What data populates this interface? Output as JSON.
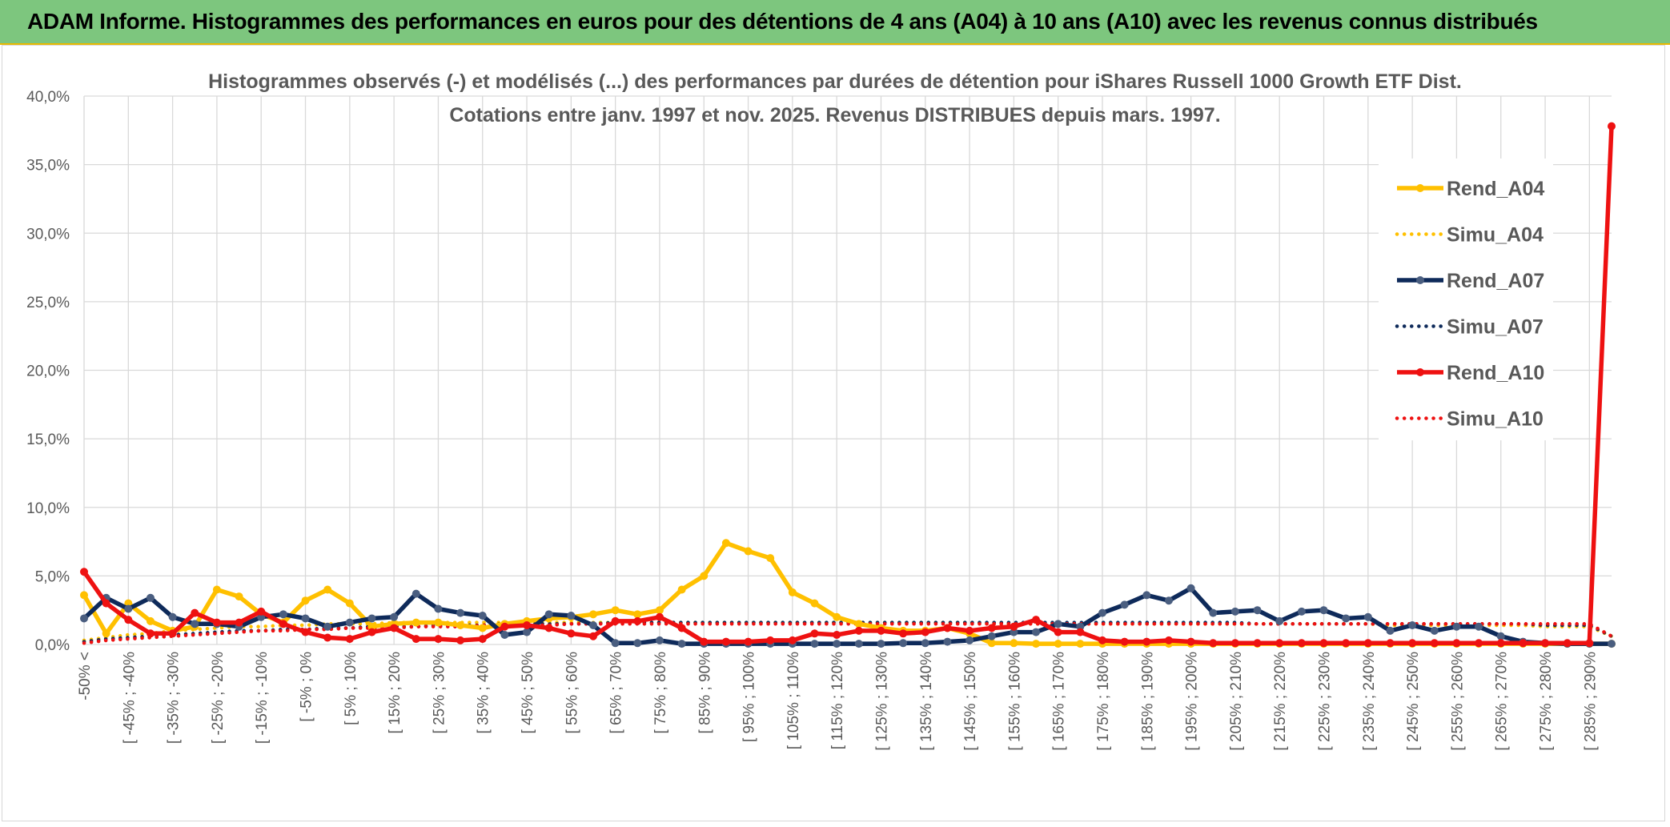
{
  "banner": {
    "title": "ADAM Informe. Histogrammes des performances en euros pour des détentions de 4 ans (A04) à 10 ans (A10) avec les revenus connus distribués"
  },
  "chart_data": {
    "type": "line",
    "title": "Histogrammes observés (-) et modélisés (...) des performances par durées de détention pour iShares Russell 1000 Growth ETF Dist.",
    "subtitle": "Cotations entre janv. 1997 et nov. 2025. Revenus DISTRIBUES depuis mars. 1997.",
    "xlabel": "",
    "ylabel": "",
    "ylim": [
      0,
      40
    ],
    "yticks": [
      "0,0%",
      "5,0%",
      "10,0%",
      "15,0%",
      "20,0%",
      "25,0%",
      "30,0%",
      "35,0%",
      "40,0%"
    ],
    "grid": true,
    "legend_position": "right",
    "tick_labels": [
      "-50% <",
      "[ -45% ; -40%",
      "[ -35% ; -30%",
      "[ -25% ; -20%",
      "[ -15% ; -10%",
      "[ -5% ; 0%",
      "[ 5% ; 10%",
      "[ 15% ; 20%",
      "[ 25% ; 30%",
      "[ 35% ; 40%",
      "[ 45% ; 50%",
      "[ 55% ; 60%",
      "[ 65% ; 70%",
      "[ 75% ; 80%",
      "[ 85% ; 90%",
      "[ 95% ; 100%",
      "[ 105% ; 110%",
      "[ 115% ; 120%",
      "[ 125% ; 130%",
      "[ 135% ; 140%",
      "[ 145% ; 150%",
      "[ 155% ; 160%",
      "[ 165% ; 170%",
      "[ 175% ; 180%",
      "[ 185% ; 190%",
      "[ 195% ; 200%",
      "[ 205% ; 210%",
      "[ 215% ; 220%",
      "[ 225% ; 230%",
      "[ 235% ; 240%",
      "[ 245% ; 250%",
      "[ 255% ; 260%",
      "[ 265% ; 270%",
      "[ 275% ; 280%",
      "[ 285% ; 290%"
    ],
    "num_categories": 70,
    "series": [
      {
        "name": "Rend_A04",
        "color": "#ffc000",
        "style": "solid",
        "values": [
          3.6,
          0.8,
          3.0,
          1.7,
          1.0,
          1.3,
          4.0,
          3.5,
          2.2,
          1.6,
          3.2,
          4.0,
          3.0,
          1.3,
          1.5,
          1.6,
          1.6,
          1.4,
          1.2,
          1.5,
          1.7,
          1.9,
          2.0,
          2.2,
          2.5,
          2.2,
          2.5,
          4.0,
          5.0,
          7.4,
          6.8,
          6.3,
          3.8,
          3.0,
          2.0,
          1.5,
          1.2,
          1.0,
          1.0,
          1.2,
          0.8,
          0.1,
          0.1,
          0.05,
          0.05,
          0.05,
          0.05,
          0.05,
          0.05,
          0.05,
          0.05,
          0.05,
          0.05,
          0.05,
          0.05,
          0.05,
          0.05,
          0.05,
          0.05,
          0.05,
          0.05,
          0.05,
          0.05,
          0.05,
          0.05,
          0.05,
          0.05,
          0.05,
          0.05,
          0.05
        ]
      },
      {
        "name": "Simu_A04",
        "color": "#ffc000",
        "style": "dotted",
        "values": [
          0.3,
          0.5,
          0.7,
          0.8,
          1.0,
          1.1,
          1.2,
          1.3,
          1.3,
          1.4,
          1.4,
          1.5,
          1.5,
          1.5,
          1.6,
          1.6,
          1.6,
          1.6,
          1.6,
          1.6,
          1.6,
          1.6,
          1.6,
          1.6,
          1.6,
          1.6,
          1.6,
          1.6,
          1.6,
          1.6,
          1.6,
          1.6,
          1.6,
          1.6,
          1.6,
          1.6,
          1.6,
          1.6,
          1.6,
          1.6,
          1.6,
          1.5,
          1.5,
          1.5,
          1.5,
          1.5,
          1.5,
          1.5,
          1.5,
          1.5,
          1.5,
          1.5,
          1.5,
          1.5,
          1.5,
          1.5,
          1.5,
          1.5,
          1.5,
          1.4,
          1.4,
          1.4,
          1.4,
          1.4,
          1.4,
          1.4,
          1.3,
          1.3,
          1.3,
          0.6
        ]
      },
      {
        "name": "Rend_A07",
        "color": "#0e2a5a",
        "style": "solid",
        "values": [
          1.9,
          3.4,
          2.6,
          3.4,
          2.0,
          1.5,
          1.5,
          1.3,
          2.0,
          2.2,
          1.9,
          1.3,
          1.6,
          1.9,
          2.0,
          3.7,
          2.6,
          2.3,
          2.1,
          0.7,
          0.9,
          2.2,
          2.1,
          1.4,
          0.1,
          0.1,
          0.3,
          0.05,
          0.05,
          0.05,
          0.05,
          0.05,
          0.05,
          0.05,
          0.05,
          0.05,
          0.05,
          0.1,
          0.1,
          0.2,
          0.3,
          0.6,
          0.9,
          0.9,
          1.5,
          1.3,
          2.3,
          2.9,
          3.6,
          3.2,
          4.1,
          2.3,
          2.4,
          2.5,
          1.7,
          2.4,
          2.5,
          1.9,
          2.0,
          1.0,
          1.4,
          1.0,
          1.3,
          1.3,
          0.6,
          0.2,
          0.1,
          0.05,
          0.05,
          0.05
        ]
      },
      {
        "name": "Simu_A07",
        "color": "#0e2a5a",
        "style": "dotted",
        "values": [
          0.2,
          0.4,
          0.5,
          0.6,
          0.7,
          0.8,
          0.9,
          1.0,
          1.0,
          1.1,
          1.1,
          1.2,
          1.2,
          1.3,
          1.3,
          1.3,
          1.4,
          1.4,
          1.4,
          1.5,
          1.5,
          1.5,
          1.5,
          1.5,
          1.6,
          1.6,
          1.6,
          1.6,
          1.6,
          1.6,
          1.6,
          1.6,
          1.6,
          1.6,
          1.6,
          1.6,
          1.6,
          1.6,
          1.6,
          1.6,
          1.6,
          1.6,
          1.6,
          1.6,
          1.6,
          1.6,
          1.6,
          1.6,
          1.6,
          1.6,
          1.6,
          1.6,
          1.6,
          1.5,
          1.5,
          1.5,
          1.5,
          1.5,
          1.5,
          1.5,
          1.5,
          1.5,
          1.5,
          1.5,
          1.5,
          1.5,
          1.4,
          1.4,
          1.4,
          0.6
        ]
      },
      {
        "name": "Rend_A10",
        "color": "#ee1111",
        "style": "solid",
        "values": [
          5.3,
          3.0,
          1.8,
          0.8,
          0.8,
          2.3,
          1.6,
          1.6,
          2.4,
          1.5,
          0.9,
          0.5,
          0.4,
          0.9,
          1.2,
          0.4,
          0.4,
          0.3,
          0.4,
          1.3,
          1.4,
          1.2,
          0.8,
          0.6,
          1.7,
          1.7,
          2.0,
          1.2,
          0.2,
          0.2,
          0.2,
          0.3,
          0.3,
          0.8,
          0.7,
          1.0,
          1.0,
          0.8,
          0.9,
          1.2,
          1.0,
          1.2,
          1.3,
          1.8,
          0.9,
          0.9,
          0.3,
          0.2,
          0.2,
          0.3,
          0.2,
          0.1,
          0.1,
          0.1,
          0.1,
          0.1,
          0.1,
          0.1,
          0.1,
          0.1,
          0.1,
          0.1,
          0.1,
          0.1,
          0.1,
          0.1,
          0.1,
          0.1,
          0.1,
          37.8
        ]
      },
      {
        "name": "Simu_A10",
        "color": "#ee1111",
        "style": "dotted",
        "values": [
          0.1,
          0.3,
          0.4,
          0.5,
          0.6,
          0.7,
          0.8,
          0.9,
          1.0,
          1.0,
          1.1,
          1.1,
          1.2,
          1.2,
          1.2,
          1.3,
          1.3,
          1.3,
          1.4,
          1.4,
          1.4,
          1.4,
          1.5,
          1.5,
          1.5,
          1.5,
          1.5,
          1.5,
          1.5,
          1.5,
          1.5,
          1.5,
          1.5,
          1.5,
          1.5,
          1.5,
          1.5,
          1.5,
          1.5,
          1.5,
          1.5,
          1.5,
          1.5,
          1.5,
          1.5,
          1.5,
          1.5,
          1.5,
          1.5,
          1.5,
          1.5,
          1.5,
          1.5,
          1.5,
          1.5,
          1.5,
          1.5,
          1.5,
          1.5,
          1.5,
          1.5,
          1.5,
          1.5,
          1.5,
          1.5,
          1.5,
          1.5,
          1.5,
          1.5,
          0.6
        ]
      }
    ]
  }
}
